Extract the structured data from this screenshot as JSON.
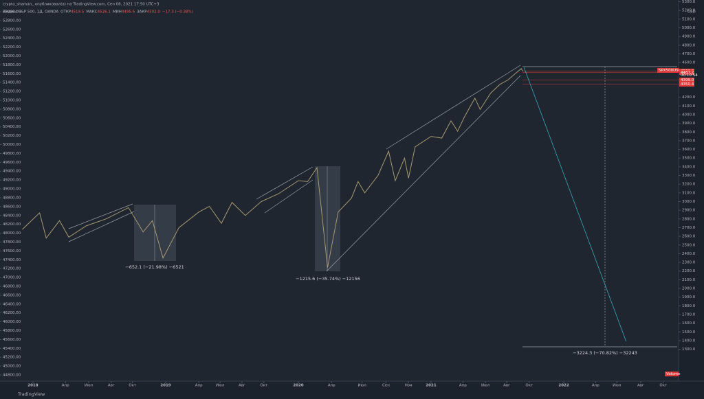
{
  "chart_data": {
    "type": "line",
    "title": "crypto_shaman_ опубликовал(а) на TradingView.com, Сен 08, 2021 17:50 UTC+3",
    "legend": {
      "symbol": "Индекс S&P 500, 1Д, OANDA",
      "ohlc_names": [
        "ОТКР",
        "МАКС",
        "МИН",
        "ЗАКР"
      ],
      "ohlc_values": [
        4519.5,
        4526.1,
        4495.6,
        4502
      ],
      "ohlc_value_labels": [
        "4519.5",
        "4526.1",
        "4495.6",
        "4502.0"
      ],
      "change": "−17.3 (−0.38%)"
    },
    "currency": "USD",
    "series": [
      {
        "name": "SPX500USD",
        "color": "#a89a72",
        "x": [
          2017.92,
          2018.05,
          2018.1,
          2018.2,
          2018.27,
          2018.4,
          2018.55,
          2018.72,
          2018.83,
          2018.9,
          2018.98,
          2019.1,
          2019.25,
          2019.33,
          2019.42,
          2019.5,
          2019.6,
          2019.72,
          2019.85,
          2020.0,
          2020.07,
          2020.14,
          2020.22,
          2020.3,
          2020.4,
          2020.45,
          2020.5,
          2020.6,
          2020.68,
          2020.73,
          2020.8,
          2020.83,
          2020.88,
          2021.0,
          2021.08,
          2021.15,
          2021.2,
          2021.25,
          2021.33,
          2021.37,
          2021.45,
          2021.52,
          2021.58,
          2021.64,
          2021.68,
          2021.69
        ],
        "values": [
          2680,
          2870,
          2580,
          2780,
          2590,
          2720,
          2800,
          2930,
          2650,
          2780,
          2350,
          2700,
          2880,
          2945,
          2750,
          2990,
          2840,
          3000,
          3090,
          3240,
          3230,
          3390,
          2240,
          2880,
          3040,
          3230,
          3100,
          3300,
          3580,
          3240,
          3500,
          3270,
          3630,
          3750,
          3730,
          3930,
          3810,
          3970,
          4190,
          4060,
          4250,
          4350,
          4400,
          4480,
          4530,
          4502
        ]
      },
      {
        "name": "projection",
        "color": "#3aa6b9",
        "x": [
          2021.7,
          2022.47
        ],
        "values": [
          4545,
          1390
        ]
      }
    ],
    "price_labels": [
      {
        "value": 4502,
        "label": "4502.0"
      },
      {
        "value": 4487.2,
        "label": "4487.2"
      },
      {
        "value": 4399,
        "label": "4399.0"
      },
      {
        "value": 4350.4,
        "label": "4350.4"
      }
    ],
    "countdown": "00:10:54",
    "annotations": [
      "−652.1 (−21.98%) −6521",
      "−1215.6 (−35.74%) −12156",
      "−3224.3 (−70.82%) −32243"
    ],
    "volume_label": "Volume",
    "brand": "TradingView",
    "xlim": [
      2017.907,
      2022.865
    ],
    "xticks": [
      2018,
      {
        "value": 2018.245,
        "label": "Апр"
      },
      {
        "value": 2018.42,
        "label": "Июл"
      },
      {
        "value": 2018.59,
        "label": "Авг"
      },
      {
        "value": 2018.75,
        "label": "Окт"
      },
      2019,
      {
        "value": 2019.25,
        "label": "Апр"
      },
      {
        "value": 2019.41,
        "label": "Июл"
      },
      {
        "value": 2019.575,
        "label": "Авг"
      },
      {
        "value": 2019.74,
        "label": "Окт"
      },
      2020,
      {
        "value": 2020.25,
        "label": "Апр"
      },
      {
        "value": 2020.48,
        "label": "Июл"
      },
      {
        "value": 2020.66,
        "label": "Сен"
      },
      {
        "value": 2020.83,
        "label": "Ноя"
      },
      2021,
      {
        "value": 2021.24,
        "label": "Апр"
      },
      {
        "value": 2021.41,
        "label": "Июл"
      },
      {
        "value": 2021.57,
        "label": "Авг"
      },
      {
        "value": 2021.74,
        "label": "Окт"
      },
      2022,
      {
        "value": 2022.24,
        "label": "Апр"
      },
      {
        "value": 2022.4,
        "label": "Июл"
      },
      {
        "value": 2022.58,
        "label": "Авг"
      },
      {
        "value": 2022.75,
        "label": "Окт"
      }
    ],
    "ylim": [
      933,
      5320
    ],
    "yticks": [
      {
        "value": 5300,
        "label": "5300.0"
      },
      {
        "value": 5200,
        "label": "5200.0"
      },
      {
        "value": 5100,
        "label": "5100.0"
      },
      {
        "value": 5000,
        "label": "5000.0"
      },
      {
        "value": 4900,
        "label": "4900.0"
      },
      {
        "value": 4800,
        "label": "4800.0"
      },
      {
        "value": 4700,
        "label": "4700.0"
      },
      {
        "value": 4600,
        "label": "4600.0"
      },
      {
        "value": 4200,
        "label": "4200.0"
      },
      {
        "value": 4100,
        "label": "4100.0"
      },
      {
        "value": 4000,
        "label": "4000.0"
      },
      {
        "value": 3900,
        "label": "3900.0"
      },
      {
        "value": 3800,
        "label": "3800.0"
      },
      {
        "value": 3700,
        "label": "3700.0"
      },
      {
        "value": 3600,
        "label": "3600.0"
      },
      {
        "value": 3500,
        "label": "3500.0"
      },
      {
        "value": 3400,
        "label": "3400.0"
      },
      {
        "value": 3300,
        "label": "3300.0"
      },
      {
        "value": 3200,
        "label": "3200.0"
      },
      {
        "value": 3100,
        "label": "3100.0"
      },
      {
        "value": 3000,
        "label": "3000.0"
      },
      {
        "value": 2900,
        "label": "2900.0"
      },
      {
        "value": 2800,
        "label": "2800.0"
      },
      {
        "value": 2700,
        "label": "2700.0"
      },
      {
        "value": 2600,
        "label": "2600.0"
      },
      {
        "value": 2500,
        "label": "2500.0"
      },
      {
        "value": 2400,
        "label": "2400.0"
      },
      {
        "value": 2300,
        "label": "2300.0"
      },
      {
        "value": 2200,
        "label": "2200.0"
      },
      {
        "value": 2100,
        "label": "2100.0"
      },
      {
        "value": 2000,
        "label": "2000.0"
      },
      {
        "value": 1900,
        "label": "1900.0"
      },
      {
        "value": 1800,
        "label": "1800.0"
      },
      {
        "value": 1700,
        "label": "1700.0"
      },
      {
        "value": 1600,
        "label": "1600.0"
      },
      {
        "value": 1500,
        "label": "1500.0"
      },
      {
        "value": 1400,
        "label": "1400.0"
      },
      {
        "value": 1300,
        "label": "1300.0"
      }
    ],
    "y2lim": [
      44660,
      53264
    ],
    "y2ticks": [
      {
        "value": 53000,
        "label": "53000.00"
      },
      {
        "value": 52800,
        "label": "52800.00"
      },
      {
        "value": 52600,
        "label": "52600.00"
      },
      {
        "value": 52400,
        "label": "52400.00"
      },
      {
        "value": 52200,
        "label": "52200.00"
      },
      {
        "value": 52000,
        "label": "52000.00"
      },
      {
        "value": 51800,
        "label": "51800.00"
      },
      {
        "value": 51600,
        "label": "51600.00"
      },
      {
        "value": 51400,
        "label": "51400.00"
      },
      {
        "value": 51200,
        "label": "51200.00"
      },
      {
        "value": 51000,
        "label": "51000.00"
      },
      {
        "value": 50800,
        "label": "50800.00"
      },
      {
        "value": 50600,
        "label": "50600.00"
      },
      {
        "value": 50400,
        "label": "50400.00"
      },
      {
        "value": 50200,
        "label": "50200.00"
      },
      {
        "value": 50000,
        "label": "50000.00"
      },
      {
        "value": 49800,
        "label": "49800.00"
      },
      {
        "value": 49600,
        "label": "49600.00"
      },
      {
        "value": 49400,
        "label": "49400.00"
      },
      {
        "value": 49200,
        "label": "49200.00"
      },
      {
        "value": 49000,
        "label": "49000.00"
      },
      {
        "value": 48800,
        "label": "48800.00"
      },
      {
        "value": 48600,
        "label": "48600.00"
      },
      {
        "value": 48400,
        "label": "48400.00"
      },
      {
        "value": 48200,
        "label": "48200.00"
      },
      {
        "value": 48000,
        "label": "48000.00"
      },
      {
        "value": 47800,
        "label": "47800.00"
      },
      {
        "value": 47600,
        "label": "47600.00"
      },
      {
        "value": 47400,
        "label": "47400.00"
      },
      {
        "value": 47200,
        "label": "47200.00"
      },
      {
        "value": 47000,
        "label": "47000.00"
      },
      {
        "value": 46800,
        "label": "46800.00"
      },
      {
        "value": 46600,
        "label": "46600.00"
      },
      {
        "value": 46400,
        "label": "46400.00"
      },
      {
        "value": 46200,
        "label": "46200.00"
      },
      {
        "value": 46000,
        "label": "46000.00"
      },
      {
        "value": 45800,
        "label": "45800.00"
      },
      {
        "value": 45600,
        "label": "45600.00"
      },
      {
        "value": 45400,
        "label": "45400.00"
      },
      {
        "value": 45200,
        "label": "45200.00"
      },
      {
        "value": 45000,
        "label": "45000.00"
      },
      {
        "value": 44800,
        "label": "44800.00"
      }
    ]
  }
}
